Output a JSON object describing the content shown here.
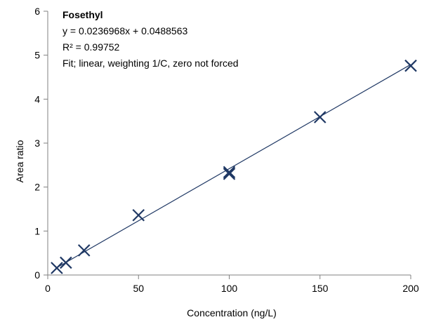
{
  "chart_data": {
    "type": "scatter",
    "xlabel": "Concentration  (ng/L)",
    "ylabel": "Area ratio",
    "xlim": [
      0,
      200
    ],
    "ylim": [
      0,
      6
    ],
    "xticks": [
      0,
      50,
      100,
      150,
      200
    ],
    "yticks": [
      0,
      1,
      2,
      3,
      4,
      5,
      6
    ],
    "grid": false,
    "series": [
      {
        "marker": "x",
        "color": "#1f3864",
        "points": [
          {
            "x": 5,
            "y": 0.16
          },
          {
            "x": 10,
            "y": 0.28
          },
          {
            "x": 20,
            "y": 0.56
          },
          {
            "x": 50,
            "y": 1.36
          },
          {
            "x": 100,
            "y": 2.3
          },
          {
            "x": 100,
            "y": 2.34
          },
          {
            "x": 150,
            "y": 3.59
          },
          {
            "x": 200,
            "y": 4.76
          }
        ]
      }
    ],
    "fit": {
      "slope": 0.0236968,
      "intercept": 0.0488563,
      "x_range": [
        5,
        200
      ],
      "color": "#1f3864"
    },
    "annotation": {
      "title": "Fosethyl",
      "equation": "y = 0.0236968x + 0.0488563",
      "r2": "R² = 0.99752",
      "fit_note": "Fit; linear, weighting 1/C, zero not forced"
    }
  }
}
